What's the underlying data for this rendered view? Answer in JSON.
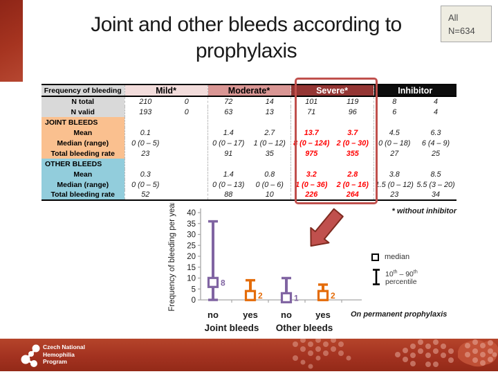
{
  "slide": {
    "title": "Joint and other bleeds according to prophylaxis",
    "badge": {
      "line1": "All",
      "line2": "N=634"
    }
  },
  "table": {
    "label_header": "Frequency of bleeding",
    "groups": [
      {
        "label": "Mild*"
      },
      {
        "label": "Moderate*"
      },
      {
        "label": "Severe*"
      },
      {
        "label": "Inhibitor"
      }
    ],
    "rows": [
      {
        "label": "N total",
        "section": "top",
        "header": false,
        "values": [
          "210",
          "0",
          "72",
          "14",
          "101",
          "119",
          "8",
          "4"
        ]
      },
      {
        "label": "N valid",
        "section": "top",
        "header": false,
        "values": [
          "193",
          "0",
          "63",
          "13",
          "71",
          "96",
          "6",
          "4"
        ]
      },
      {
        "label": "JOINT BLEEDS",
        "section": "joint",
        "header": true,
        "values": [
          "",
          "",
          "",
          "",
          "",
          "",
          "",
          ""
        ]
      },
      {
        "label": "Mean",
        "section": "joint",
        "header": false,
        "values": [
          "0.1",
          "",
          "1.4",
          "2.7",
          "13.7",
          "3.7",
          "4.5",
          "6.3"
        ]
      },
      {
        "label": "Median (range)",
        "section": "joint",
        "header": false,
        "values": [
          "0 (0 – 5)",
          "",
          "0 (0 – 17)",
          "1 (0 – 12)",
          "8 (0 – 124)",
          "2 (0 – 30)",
          "0 (0 – 18)",
          "6 (4 – 9)"
        ]
      },
      {
        "label": "Total bleeding rate",
        "section": "joint",
        "header": false,
        "values": [
          "23",
          "",
          "91",
          "35",
          "975",
          "355",
          "27",
          "25"
        ]
      },
      {
        "label": "OTHER BLEEDS",
        "section": "other",
        "header": true,
        "values": [
          "",
          "",
          "",
          "",
          "",
          "",
          "",
          ""
        ]
      },
      {
        "label": "Mean",
        "section": "other",
        "header": false,
        "values": [
          "0.3",
          "",
          "1.4",
          "0.8",
          "3.2",
          "2.8",
          "3.8",
          "8.5"
        ]
      },
      {
        "label": "Median (range)",
        "section": "other",
        "header": false,
        "values": [
          "0 (0 – 5)",
          "",
          "0 (0 – 13)",
          "0 (0 – 6)",
          "1 (0 – 36)",
          "2 (0 – 16)",
          "1.5 (0 – 12)",
          "5.5 (3 – 20)"
        ]
      },
      {
        "label": "Total bleeding rate",
        "section": "other",
        "header": false,
        "values": [
          "52",
          "",
          "88",
          "10",
          "226",
          "264",
          "23",
          "34"
        ]
      }
    ],
    "severe_columns": [
      4,
      5
    ],
    "note": "* without inhibitor"
  },
  "chart_data": {
    "type": "scatter",
    "title": "",
    "ylabel": "Frequency of bleeding per year",
    "xlabel": "",
    "ylim": [
      0,
      40
    ],
    "yticks": [
      0,
      5,
      10,
      15,
      20,
      25,
      30,
      35,
      40
    ],
    "grid": false,
    "categories": [
      "no",
      "yes",
      "no",
      "yes"
    ],
    "group_labels": [
      "Joint bleeds",
      "Other bleeds"
    ],
    "points": [
      {
        "category": "no",
        "group": "Joint bleeds",
        "median": 8,
        "p10": 0,
        "p90": 36,
        "color": "#8064a2",
        "value_label": "8"
      },
      {
        "category": "yes",
        "group": "Joint bleeds",
        "median": 2,
        "p10": 0,
        "p90": 9,
        "color": "#e46c0a",
        "value_label": "2"
      },
      {
        "category": "no",
        "group": "Other bleeds",
        "median": 1,
        "p10": 0,
        "p90": 10,
        "color": "#8064a2",
        "value_label": "1"
      },
      {
        "category": "yes",
        "group": "Other bleeds",
        "median": 2,
        "p10": 0,
        "p90": 7,
        "color": "#e46c0a",
        "value_label": "2"
      }
    ],
    "legend": {
      "position": "right",
      "median_label": "median",
      "percentile_label_line1": "10th – 90th",
      "percentile_label_line2": "percentile"
    },
    "annotation": "On permanent prophylaxis"
  },
  "footer": {
    "org_lines": [
      "Czech National",
      "Hemophilia",
      "Program"
    ]
  },
  "colors": {
    "mild_header_bg": "#f2dcdb",
    "moderate_header_bg": "#d99694",
    "severe_header_bg": "#943634",
    "inhibitor_header_bg": "#0d0d0d",
    "label_top_bg": "#d9d9d9",
    "joint_section_bg": "#fac08f",
    "other_section_bg": "#92cddc",
    "severe_value_color": "#ff0000",
    "highlight_border": "#c0504d",
    "series_purple": "#8064a2",
    "series_orange": "#e46c0a",
    "footer_red": "#a33220"
  }
}
